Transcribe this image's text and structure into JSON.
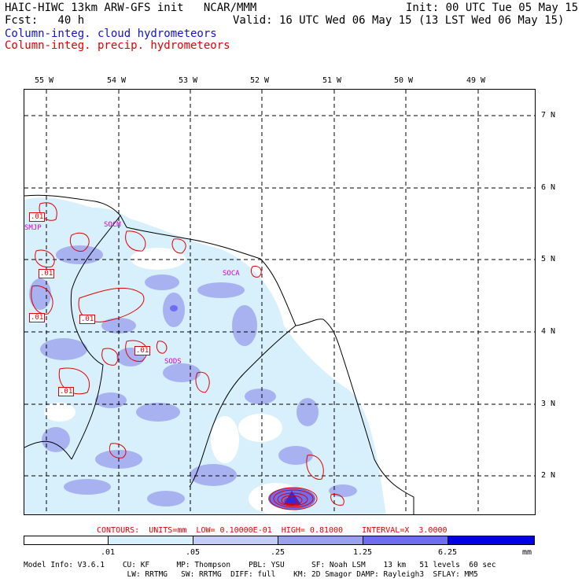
{
  "header": {
    "line1_left": "HAIC-HIWC 13km ARW-GFS init   NCAR/MMM",
    "line1_right": "Init: 00 UTC Tue 05 May 15",
    "line2_left": "Fcst:   40 h",
    "line2_right": "Valid: 16 UTC Wed 06 May 15 (13 LST Wed 06 May 15)",
    "line3": "Column-integ. cloud hydrometeors",
    "line4": "Column-integ. precip. hydrometeors"
  },
  "colors": {
    "cloud_text": "#1010d0",
    "precip_text": "#e00000",
    "station_text": "#d000d0",
    "shade_1": "#d8f0fc",
    "shade_2": "#c3cdf5",
    "shade_3": "#9aa2ef",
    "shade_4": "#6e6cef",
    "shade_5": "#3030e8",
    "shade_6": "#0000e0"
  },
  "map": {
    "lon_labels": [
      "55 W",
      "54 W",
      "53 W",
      "52 W",
      "51 W",
      "50 W",
      "49 W"
    ],
    "lat_labels": [
      "7 N",
      "6 N",
      "5 N",
      "4 N",
      "3 N",
      "2 N"
    ],
    "stations": [
      "SMJP",
      "SOCM",
      "SOCA",
      "SODS"
    ],
    "contour_labels": [
      ".01",
      ".01",
      ".01",
      ".01",
      ".01",
      ".01"
    ]
  },
  "contours_line": "CONTOURS:  UNITS=mm  LOW= 0.10000E-01  HIGH= 0.81000    INTERVAL=X  3.0000",
  "colorbar": {
    "ticks": [
      ".01",
      ".05",
      ".25",
      "1.25",
      "6.25"
    ],
    "unit": "mm"
  },
  "model_info": {
    "line1": "Model Info: V3.6.1    CU: KF      MP: Thompson    PBL: YSU      SF: Noah LSM    13 km   51 levels  60 sec",
    "line2": "                       LW: RRTMG   SW: RRTMG  DIFF: full    KM: 2D Smagor DAMP: Rayleigh3  SFLAY: MM5"
  }
}
